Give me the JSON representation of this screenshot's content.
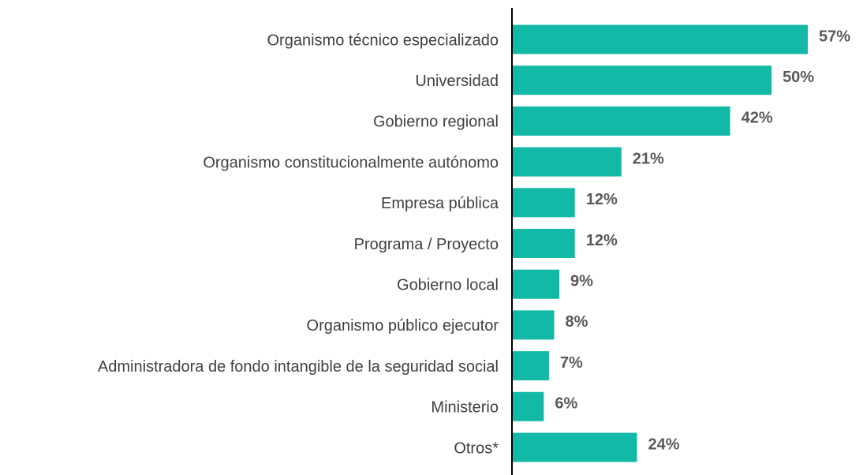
{
  "chart_data": {
    "type": "bar",
    "orientation": "horizontal",
    "categories": [
      "Organismo técnico especializado",
      "Universidad",
      "Gobierno regional",
      "Organismo constitucionalmente autónomo",
      "Empresa pública",
      "Programa / Proyecto",
      "Gobierno local",
      "Organismo público ejecutor",
      "Administradora de fondo intangible de la seguridad social",
      "Ministerio",
      "Otros*"
    ],
    "values": [
      57,
      50,
      42,
      21,
      12,
      12,
      9,
      8,
      7,
      6,
      24
    ],
    "value_labels": [
      "57%",
      "50%",
      "42%",
      "21%",
      "12%",
      "12%",
      "9%",
      "8%",
      "7%",
      "6%",
      "24%"
    ],
    "color": "#13b9a7"
  }
}
